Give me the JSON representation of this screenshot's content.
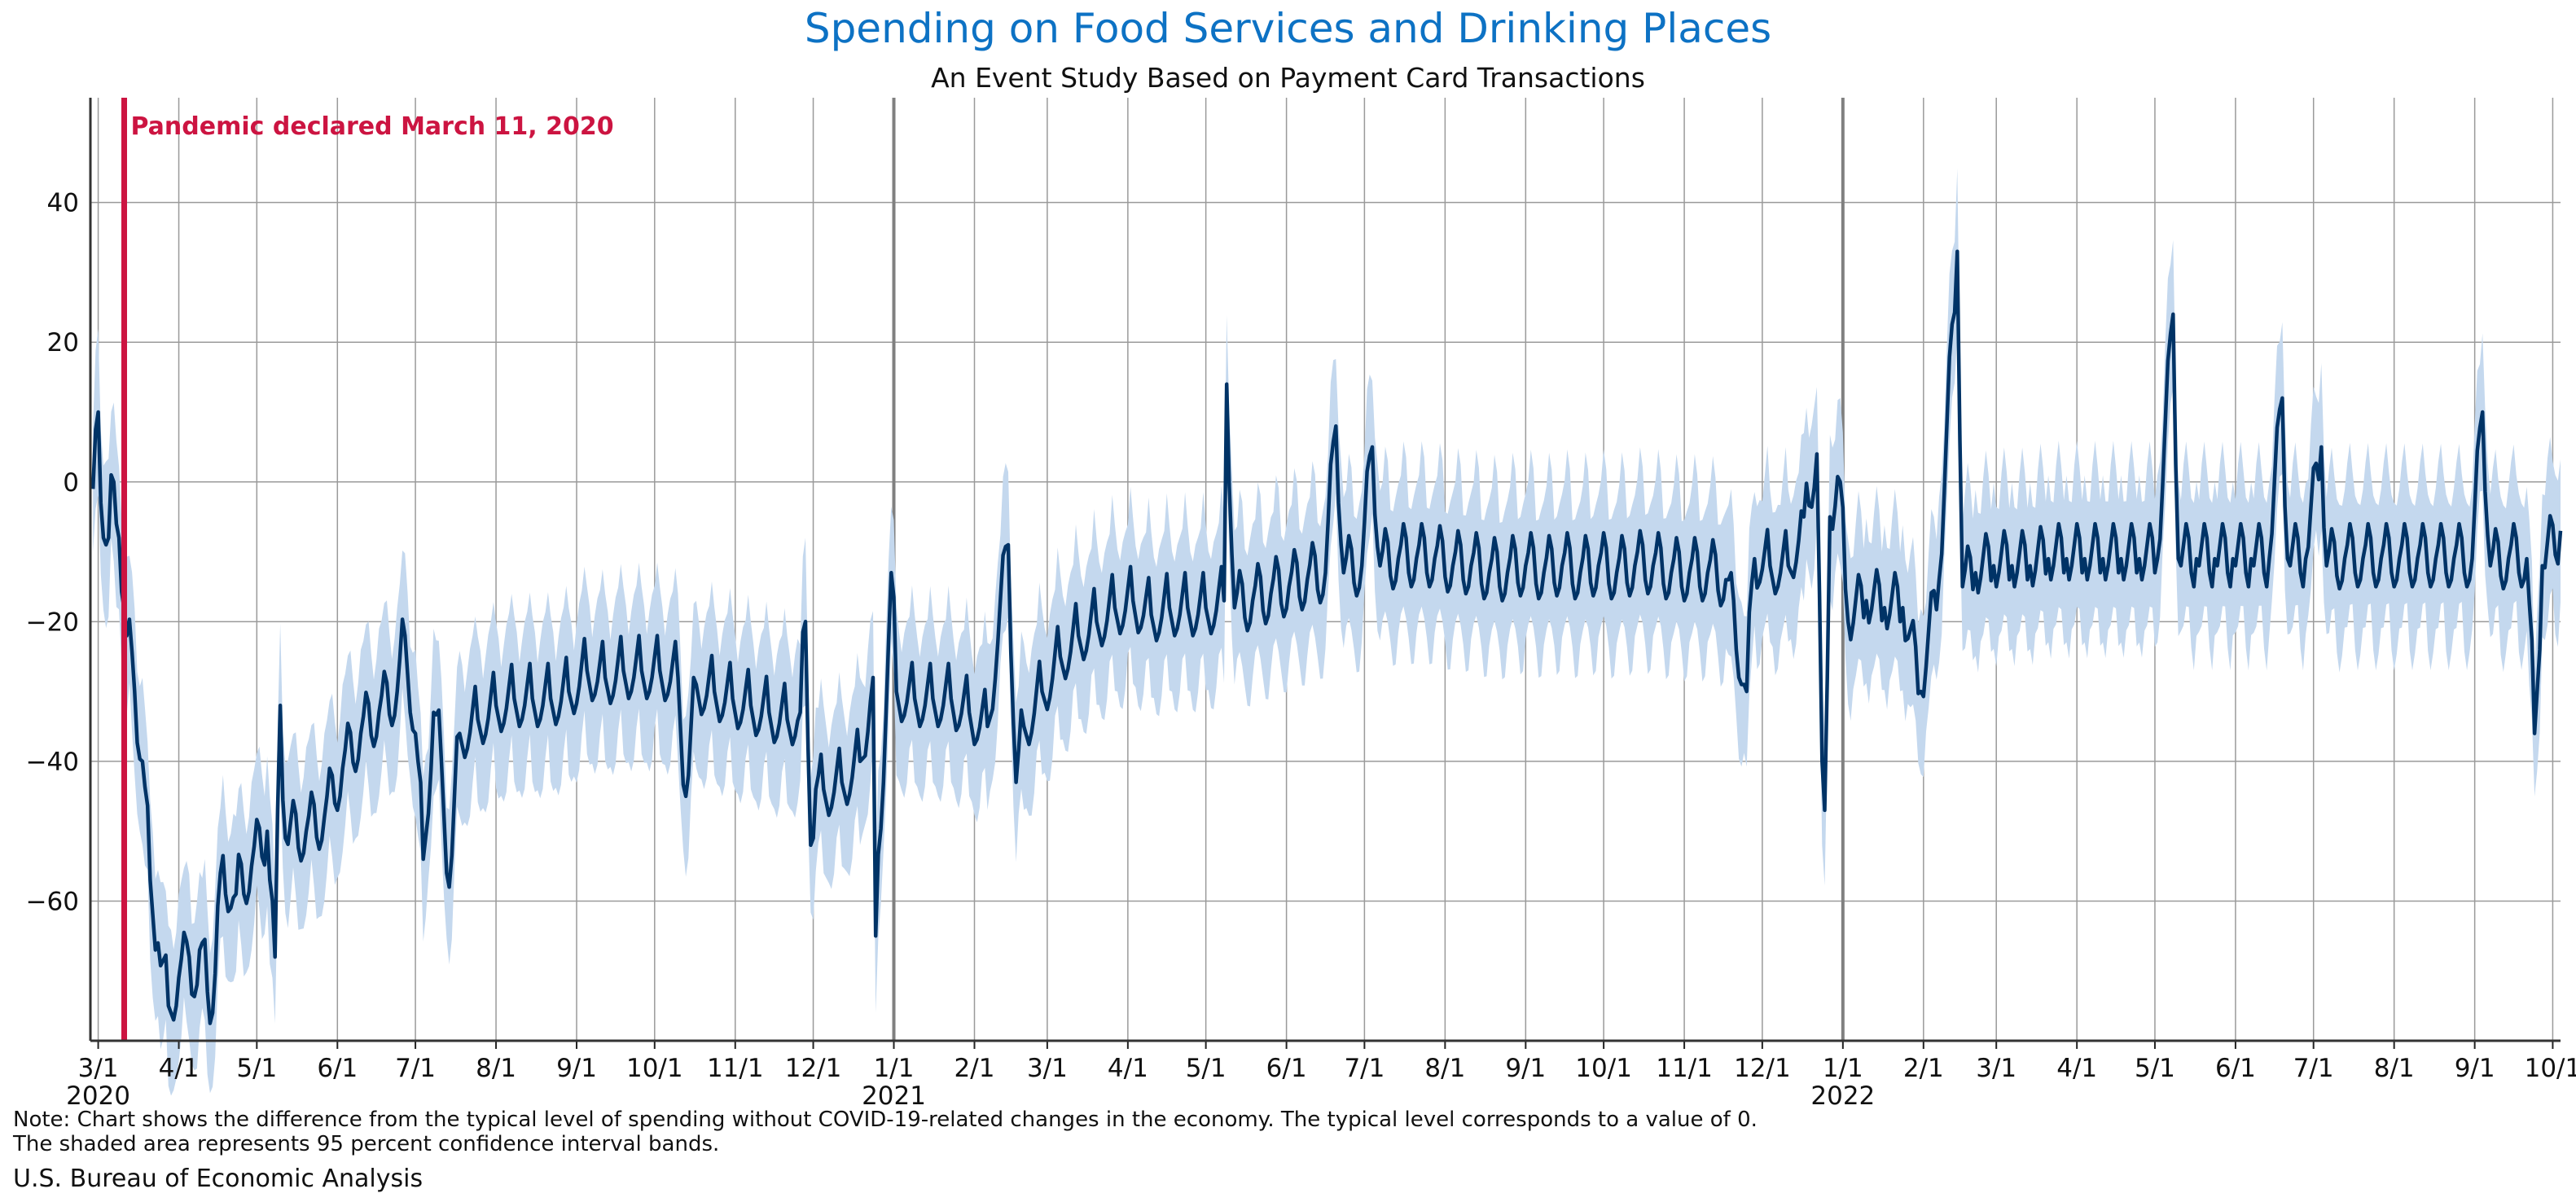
{
  "title": "Spending on Food Services and Drinking Places",
  "subtitle": "An Event Study Based on Payment Card Transactions",
  "note_line1": "Note: Chart shows the difference from the typical level of spending without COVID-19-related changes in the economy. The typical level corresponds to a value of 0.",
  "note_line2": "The shaded area represents 95 percent confidence interval bands.",
  "source": "U.S. Bureau of Economic Analysis",
  "colors": {
    "line": "#003366",
    "band": "#c4d8ee",
    "event": "#cc1441",
    "grid": "#9a9a9a",
    "year_line": "#808080",
    "title": "#0d72c4"
  },
  "chart_data": {
    "type": "line",
    "x_type": "date",
    "xlim": [
      "2020-02-27",
      "2022-10-04"
    ],
    "ylim": [
      -80,
      55
    ],
    "grid": true,
    "y_ticks": [
      -60,
      -40,
      -20,
      0,
      20,
      40
    ],
    "y_tick_labels": [
      "−60",
      "−40",
      "−20",
      "0",
      "20",
      "40"
    ],
    "x_ticks": [
      {
        "date": "2020-03-01",
        "label": "3/1"
      },
      {
        "date": "2020-04-01",
        "label": "4/1"
      },
      {
        "date": "2020-05-01",
        "label": "5/1"
      },
      {
        "date": "2020-06-01",
        "label": "6/1"
      },
      {
        "date": "2020-07-01",
        "label": "7/1"
      },
      {
        "date": "2020-08-01",
        "label": "8/1"
      },
      {
        "date": "2020-09-01",
        "label": "9/1"
      },
      {
        "date": "2020-10-01",
        "label": "10/1"
      },
      {
        "date": "2020-11-01",
        "label": "11/1"
      },
      {
        "date": "2020-12-01",
        "label": "12/1"
      },
      {
        "date": "2021-01-01",
        "label": "1/1"
      },
      {
        "date": "2021-02-01",
        "label": "2/1"
      },
      {
        "date": "2021-03-01",
        "label": "3/1"
      },
      {
        "date": "2021-04-01",
        "label": "4/1"
      },
      {
        "date": "2021-05-01",
        "label": "5/1"
      },
      {
        "date": "2021-06-01",
        "label": "6/1"
      },
      {
        "date": "2021-07-01",
        "label": "7/1"
      },
      {
        "date": "2021-08-01",
        "label": "8/1"
      },
      {
        "date": "2021-09-01",
        "label": "9/1"
      },
      {
        "date": "2021-10-01",
        "label": "10/1"
      },
      {
        "date": "2021-11-01",
        "label": "11/1"
      },
      {
        "date": "2021-12-01",
        "label": "12/1"
      },
      {
        "date": "2022-01-01",
        "label": "1/1"
      },
      {
        "date": "2022-02-01",
        "label": "2/1"
      },
      {
        "date": "2022-03-01",
        "label": "3/1"
      },
      {
        "date": "2022-04-01",
        "label": "4/1"
      },
      {
        "date": "2022-05-01",
        "label": "5/1"
      },
      {
        "date": "2022-06-01",
        "label": "6/1"
      },
      {
        "date": "2022-07-01",
        "label": "7/1"
      },
      {
        "date": "2022-08-01",
        "label": "8/1"
      },
      {
        "date": "2022-09-01",
        "label": "9/1"
      },
      {
        "date": "2022-10-01",
        "label": "10/1"
      }
    ],
    "year_labels": [
      {
        "date": "2020-03-01",
        "label": "2020"
      },
      {
        "date": "2021-01-01",
        "label": "2021"
      },
      {
        "date": "2022-01-01",
        "label": "2022"
      }
    ],
    "year_lines": [
      "2021-01-01",
      "2022-01-01"
    ],
    "event": {
      "date": "2020-03-11",
      "label": "Pandemic declared March 11, 2020"
    },
    "confidence_band_halfwidth": 9,
    "series": [
      {
        "values_note": "daily spending difference; anchor points (date, value); intermediate days follow a weekly cycle",
        "points": [
          [
            "2020-02-28",
            -1
          ],
          [
            "2020-03-01",
            10
          ],
          [
            "2020-03-03",
            -8
          ],
          [
            "2020-03-05",
            -8
          ],
          [
            "2020-03-07",
            0
          ],
          [
            "2020-03-09",
            -8
          ],
          [
            "2020-03-12",
            -22
          ],
          [
            "2020-03-15",
            -30
          ],
          [
            "2020-03-18",
            -40
          ],
          [
            "2020-03-21",
            -57
          ],
          [
            "2020-03-24",
            -66
          ],
          [
            "2020-03-28",
            -75
          ],
          [
            "2020-04-01",
            -71
          ],
          [
            "2020-04-05",
            -68
          ],
          [
            "2020-04-08",
            -72
          ],
          [
            "2020-04-10",
            -66
          ],
          [
            "2020-04-14",
            -76
          ],
          [
            "2020-04-17",
            -56
          ],
          [
            "2020-04-23",
            -59
          ],
          [
            "2020-04-29",
            -55
          ],
          [
            "2020-05-05",
            -50
          ],
          [
            "2020-05-08",
            -68
          ],
          [
            "2020-05-10",
            -32
          ],
          [
            "2020-05-12",
            -51
          ],
          [
            "2020-05-20",
            -50
          ],
          [
            "2020-05-27",
            -48
          ],
          [
            "2020-06-03",
            -41
          ],
          [
            "2020-06-10",
            -36
          ],
          [
            "2020-06-17",
            -33
          ],
          [
            "2020-06-24",
            -30
          ],
          [
            "2020-06-27",
            -22
          ],
          [
            "2020-07-01",
            -36
          ],
          [
            "2020-07-04",
            -54
          ],
          [
            "2020-07-08",
            -33
          ],
          [
            "2020-07-11",
            -40
          ],
          [
            "2020-07-14",
            -58
          ],
          [
            "2020-07-18",
            -36
          ],
          [
            "2020-07-25",
            -34
          ],
          [
            "2020-08-01",
            -32
          ],
          [
            "2020-08-08",
            -31
          ],
          [
            "2020-08-15",
            -31
          ],
          [
            "2020-08-22",
            -31
          ],
          [
            "2020-08-29",
            -30
          ],
          [
            "2020-09-05",
            -27
          ],
          [
            "2020-09-12",
            -28
          ],
          [
            "2020-09-19",
            -27
          ],
          [
            "2020-09-26",
            -27
          ],
          [
            "2020-10-03",
            -27
          ],
          [
            "2020-10-10",
            -28
          ],
          [
            "2020-10-13",
            -45
          ],
          [
            "2020-10-17",
            -29
          ],
          [
            "2020-10-24",
            -30
          ],
          [
            "2020-10-31",
            -31
          ],
          [
            "2020-11-07",
            -32
          ],
          [
            "2020-11-14",
            -33
          ],
          [
            "2020-11-21",
            -34
          ],
          [
            "2020-11-26",
            -33
          ],
          [
            "2020-11-28",
            -20
          ],
          [
            "2020-11-30",
            -52
          ],
          [
            "2020-12-02",
            -44
          ],
          [
            "2020-12-05",
            -44
          ],
          [
            "2020-12-12",
            -43
          ],
          [
            "2020-12-19",
            -40
          ],
          [
            "2020-12-24",
            -28
          ],
          [
            "2020-12-25",
            -65
          ],
          [
            "2020-12-31",
            -13
          ],
          [
            "2021-01-02",
            -30
          ],
          [
            "2021-01-09",
            -31
          ],
          [
            "2021-01-16",
            -31
          ],
          [
            "2021-01-23",
            -31
          ],
          [
            "2021-01-30",
            -33
          ],
          [
            "2021-02-06",
            -35
          ],
          [
            "2021-02-14",
            -9
          ],
          [
            "2021-02-17",
            -43
          ],
          [
            "2021-02-20",
            -35
          ],
          [
            "2021-02-27",
            -30
          ],
          [
            "2021-03-06",
            -25
          ],
          [
            "2021-03-13",
            -22
          ],
          [
            "2021-03-20",
            -20
          ],
          [
            "2021-03-27",
            -18
          ],
          [
            "2021-04-03",
            -17
          ],
          [
            "2021-04-10",
            -19
          ],
          [
            "2021-04-17",
            -18
          ],
          [
            "2021-04-24",
            -18
          ],
          [
            "2021-05-01",
            -18
          ],
          [
            "2021-05-08",
            -17
          ],
          [
            "2021-05-09",
            14
          ],
          [
            "2021-05-12",
            -18
          ],
          [
            "2021-05-19",
            -17
          ],
          [
            "2021-05-26",
            -16
          ],
          [
            "2021-06-02",
            -15
          ],
          [
            "2021-06-09",
            -14
          ],
          [
            "2021-06-16",
            -13
          ],
          [
            "2021-06-20",
            8
          ],
          [
            "2021-06-23",
            -13
          ],
          [
            "2021-06-30",
            -12
          ],
          [
            "2021-07-04",
            5
          ],
          [
            "2021-07-07",
            -12
          ],
          [
            "2021-07-14",
            -11
          ],
          [
            "2021-07-21",
            -11
          ],
          [
            "2021-07-28",
            -11
          ],
          [
            "2021-08-04",
            -12
          ],
          [
            "2021-08-11",
            -12
          ],
          [
            "2021-08-18",
            -13
          ],
          [
            "2021-08-25",
            -13
          ],
          [
            "2021-09-01",
            -12
          ],
          [
            "2021-09-08",
            -13
          ],
          [
            "2021-09-15",
            -12
          ],
          [
            "2021-09-22",
            -13
          ],
          [
            "2021-09-29",
            -12
          ],
          [
            "2021-10-06",
            -13
          ],
          [
            "2021-10-13",
            -12
          ],
          [
            "2021-10-20",
            -12
          ],
          [
            "2021-10-27",
            -13
          ],
          [
            "2021-11-03",
            -13
          ],
          [
            "2021-11-10",
            -13
          ],
          [
            "2021-11-17",
            -14
          ],
          [
            "2021-11-25",
            -30
          ],
          [
            "2021-11-28",
            -11
          ],
          [
            "2021-12-04",
            -12
          ],
          [
            "2021-12-11",
            -12
          ],
          [
            "2021-12-17",
            -5
          ],
          [
            "2021-12-22",
            4
          ],
          [
            "2021-12-24",
            -40
          ],
          [
            "2021-12-25",
            -47
          ],
          [
            "2021-12-27",
            -5
          ],
          [
            "2021-12-31",
            0
          ],
          [
            "2022-01-03",
            -20
          ],
          [
            "2022-01-10",
            -17
          ],
          [
            "2022-01-17",
            -18
          ],
          [
            "2022-01-24",
            -18
          ],
          [
            "2022-01-31",
            -30
          ],
          [
            "2022-02-07",
            -14
          ],
          [
            "2022-02-14",
            33
          ],
          [
            "2022-02-16",
            -15
          ],
          [
            "2022-02-21",
            -13
          ],
          [
            "2022-02-28",
            -12
          ],
          [
            "2022-03-07",
            -12
          ],
          [
            "2022-03-14",
            -12
          ],
          [
            "2022-03-21",
            -11
          ],
          [
            "2022-03-28",
            -11
          ],
          [
            "2022-04-04",
            -11
          ],
          [
            "2022-04-11",
            -11
          ],
          [
            "2022-04-18",
            -11
          ],
          [
            "2022-04-25",
            -11
          ],
          [
            "2022-05-02",
            -11
          ],
          [
            "2022-05-08",
            24
          ],
          [
            "2022-05-10",
            -11
          ],
          [
            "2022-05-17",
            -11
          ],
          [
            "2022-05-24",
            -11
          ],
          [
            "2022-05-31",
            -11
          ],
          [
            "2022-06-07",
            -11
          ],
          [
            "2022-06-14",
            -11
          ],
          [
            "2022-06-19",
            12
          ],
          [
            "2022-06-21",
            -11
          ],
          [
            "2022-06-28",
            -11
          ],
          [
            "2022-07-04",
            5
          ],
          [
            "2022-07-06",
            -12
          ],
          [
            "2022-07-13",
            -11
          ],
          [
            "2022-07-20",
            -11
          ],
          [
            "2022-07-27",
            -11
          ],
          [
            "2022-08-03",
            -11
          ],
          [
            "2022-08-10",
            -11
          ],
          [
            "2022-08-17",
            -11
          ],
          [
            "2022-08-24",
            -11
          ],
          [
            "2022-08-31",
            -11
          ],
          [
            "2022-09-04",
            10
          ],
          [
            "2022-09-07",
            -12
          ],
          [
            "2022-09-14",
            -11
          ],
          [
            "2022-09-21",
            -11
          ],
          [
            "2022-09-24",
            -36
          ],
          [
            "2022-09-27",
            -12
          ],
          [
            "2022-10-04",
            -7
          ]
        ]
      }
    ]
  }
}
